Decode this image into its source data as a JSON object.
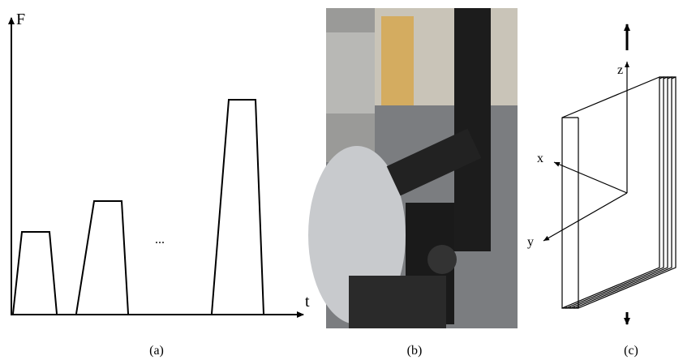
{
  "panel_a": {
    "y_axis_label": "F",
    "x_axis_label": "t",
    "ellipsis": "...",
    "caption": "(a)"
  },
  "panel_b": {
    "caption": "(b)"
  },
  "panel_c": {
    "z_label": "z",
    "x_label": "x",
    "y_label": "y",
    "caption": "(c)"
  }
}
